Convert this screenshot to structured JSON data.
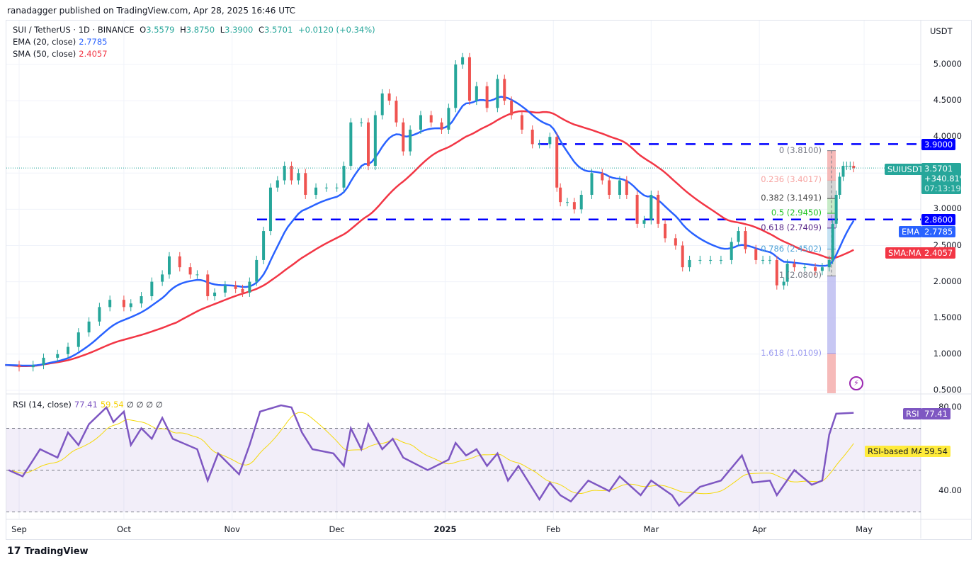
{
  "published": "ranadagger published on TradingView.com, Apr 28, 2025 16:46 UTC",
  "brand": "TradingView",
  "legend": {
    "symbol": "SUI / TetherUS · 1D · BINANCE",
    "o_label": "O",
    "o": "3.5579",
    "h_label": "H",
    "h": "3.8750",
    "l_label": "L",
    "l": "3.3900",
    "c_label": "C",
    "c": "3.5701",
    "change": "+0.0120 (+0.34%)",
    "ema_label": "EMA (20, close)",
    "ema_value": "2.7785",
    "sma_label": "SMA (50, close)",
    "sma_value": "2.4057",
    "rsi_label": "RSI (14, close)",
    "rsi_value": "77.41",
    "rsi_ma_value": "59.54",
    "rsi_extra": "∅ ∅ ∅ ∅"
  },
  "price_axis": {
    "unit": "USDT",
    "ticks": [
      "5.0000",
      "4.5000",
      "4.0000",
      "3.0000",
      "2.5000",
      "2.0000",
      "1.5000",
      "1.0000",
      "0.5000"
    ]
  },
  "rsi_axis": {
    "ticks": [
      "80.00",
      "40.00"
    ]
  },
  "time_axis": [
    [
      "Sep",
      "2024-09-01"
    ],
    [
      "Oct",
      "2024-10-01"
    ],
    [
      "Nov",
      "2024-11-01"
    ],
    [
      "Dec",
      "2024-12-01"
    ],
    [
      "2025",
      "2025-01-01"
    ],
    [
      "Feb",
      "2025-02-01"
    ],
    [
      "Mar",
      "2025-03-01"
    ],
    [
      "Apr",
      "2025-04-01"
    ],
    [
      "May",
      "2025-05-01"
    ]
  ],
  "tags": {
    "resistance": "3.9000",
    "symbol": "SUIUSDT",
    "last": "3.5701",
    "pct": "+340.81%",
    "countdown": "07:13:19",
    "support": "2.8600",
    "ema_name": "EMA",
    "ema": "2.7785",
    "sma_name": "SMA:MA",
    "sma": "2.4057",
    "rsi_name": "RSI",
    "rsi": "77.41",
    "rsi_ma_name": "RSI-based MA",
    "rsi_ma": "59.54"
  },
  "colors": {
    "up": "#26a69a",
    "down": "#ef5350",
    "ema": "#2962ff",
    "sma": "#f23645",
    "rsi": "#7e57c2",
    "rsi_ma": "#f7e43a",
    "hline": "#0000ff"
  },
  "chart_data": {
    "type": "candlestick",
    "symbol": "SUIUSDT",
    "ylim": [
      0.5,
      5.3
    ],
    "horizontal_lines": [
      3.9,
      2.86
    ],
    "closes": [
      [
        "2024-08-28",
        0.85
      ],
      [
        "2024-09-01",
        0.82
      ],
      [
        "2024-09-05",
        0.85
      ],
      [
        "2024-09-08",
        0.95
      ],
      [
        "2024-09-12",
        1.0
      ],
      [
        "2024-09-15",
        1.1
      ],
      [
        "2024-09-18",
        1.3
      ],
      [
        "2024-09-21",
        1.45
      ],
      [
        "2024-09-24",
        1.65
      ],
      [
        "2024-09-27",
        1.75
      ],
      [
        "2024-10-01",
        1.65
      ],
      [
        "2024-10-03",
        1.7
      ],
      [
        "2024-10-06",
        1.8
      ],
      [
        "2024-10-09",
        2.0
      ],
      [
        "2024-10-12",
        2.1
      ],
      [
        "2024-10-14",
        2.35
      ],
      [
        "2024-10-17",
        2.2
      ],
      [
        "2024-10-20",
        2.1
      ],
      [
        "2024-10-22",
        2.1
      ],
      [
        "2024-10-25",
        1.8
      ],
      [
        "2024-10-27",
        1.85
      ],
      [
        "2024-10-30",
        1.95
      ],
      [
        "2024-11-02",
        1.9
      ],
      [
        "2024-11-04",
        1.85
      ],
      [
        "2024-11-06",
        2.0
      ],
      [
        "2024-11-08",
        2.3
      ],
      [
        "2024-11-10",
        2.7
      ],
      [
        "2024-11-12",
        3.3
      ],
      [
        "2024-11-14",
        3.4
      ],
      [
        "2024-11-16",
        3.6
      ],
      [
        "2024-11-18",
        3.4
      ],
      [
        "2024-11-20",
        3.5
      ],
      [
        "2024-11-22",
        3.2
      ],
      [
        "2024-11-25",
        3.3
      ],
      [
        "2024-11-28",
        3.3
      ],
      [
        "2024-12-01",
        3.3
      ],
      [
        "2024-12-03",
        3.6
      ],
      [
        "2024-12-05",
        4.2
      ],
      [
        "2024-12-08",
        4.2
      ],
      [
        "2024-12-10",
        3.6
      ],
      [
        "2024-12-12",
        4.3
      ],
      [
        "2024-12-14",
        4.6
      ],
      [
        "2024-12-16",
        4.5
      ],
      [
        "2024-12-18",
        4.2
      ],
      [
        "2024-12-20",
        3.8
      ],
      [
        "2024-12-22",
        4.1
      ],
      [
        "2024-12-25",
        4.3
      ],
      [
        "2024-12-28",
        4.2
      ],
      [
        "2024-12-31",
        4.1
      ],
      [
        "2025-01-02",
        4.4
      ],
      [
        "2025-01-04",
        5.0
      ],
      [
        "2025-01-06",
        5.1
      ],
      [
        "2025-01-08",
        4.5
      ],
      [
        "2025-01-10",
        4.7
      ],
      [
        "2025-01-13",
        4.4
      ],
      [
        "2025-01-16",
        4.8
      ],
      [
        "2025-01-18",
        4.5
      ],
      [
        "2025-01-20",
        4.3
      ],
      [
        "2025-01-23",
        4.1
      ],
      [
        "2025-01-26",
        3.9
      ],
      [
        "2025-01-28",
        3.9
      ],
      [
        "2025-01-31",
        4.0
      ],
      [
        "2025-02-02",
        3.3
      ],
      [
        "2025-02-03",
        3.1
      ],
      [
        "2025-02-05",
        3.1
      ],
      [
        "2025-02-07",
        3.0
      ],
      [
        "2025-02-09",
        3.2
      ],
      [
        "2025-02-12",
        3.5
      ],
      [
        "2025-02-15",
        3.4
      ],
      [
        "2025-02-17",
        3.2
      ],
      [
        "2025-02-20",
        3.4
      ],
      [
        "2025-02-22",
        3.2
      ],
      [
        "2025-02-25",
        2.8
      ],
      [
        "2025-02-27",
        2.85
      ],
      [
        "2025-03-01",
        3.2
      ],
      [
        "2025-03-03",
        2.8
      ],
      [
        "2025-03-05",
        2.6
      ],
      [
        "2025-03-08",
        2.5
      ],
      [
        "2025-03-10",
        2.2
      ],
      [
        "2025-03-12",
        2.3
      ],
      [
        "2025-03-15",
        2.3
      ],
      [
        "2025-03-18",
        2.3
      ],
      [
        "2025-03-21",
        2.3
      ],
      [
        "2025-03-24",
        2.55
      ],
      [
        "2025-03-26",
        2.7
      ],
      [
        "2025-03-28",
        2.45
      ],
      [
        "2025-03-31",
        2.3
      ],
      [
        "2025-04-02",
        2.3
      ],
      [
        "2025-04-04",
        2.3
      ],
      [
        "2025-04-06",
        1.95
      ],
      [
        "2025-04-08",
        2.0
      ],
      [
        "2025-04-09",
        2.25
      ],
      [
        "2025-04-11",
        2.2
      ],
      [
        "2025-04-14",
        2.2
      ],
      [
        "2025-04-17",
        2.15
      ],
      [
        "2025-04-19",
        2.2
      ],
      [
        "2025-04-21",
        2.3
      ],
      [
        "2025-04-22",
        2.8
      ],
      [
        "2025-04-23",
        3.2
      ],
      [
        "2025-04-24",
        3.45
      ],
      [
        "2025-04-25",
        3.6
      ],
      [
        "2025-04-26",
        3.6
      ],
      [
        "2025-04-27",
        3.6
      ],
      [
        "2025-04-28",
        3.5701
      ]
    ],
    "indicators": {
      "ema": {
        "period": 20,
        "last": 2.7785
      },
      "sma": {
        "period": 50,
        "last": 2.4057
      }
    },
    "fibonacci": [
      {
        "label": "0 (3.8100)",
        "ratio": 0,
        "price": 3.81,
        "color": "#787b86"
      },
      {
        "label": "0.236 (3.4017)",
        "ratio": 0.236,
        "price": 3.4017,
        "color": "#f7a5a3"
      },
      {
        "label": "0.382 (3.1491)",
        "ratio": 0.382,
        "price": 3.1491,
        "color": "#4a4a4a"
      },
      {
        "label": "0.5 (2.9450)",
        "ratio": 0.5,
        "price": 2.945,
        "color": "#22c322"
      },
      {
        "label": "0.618 (2.7409)",
        "ratio": 0.618,
        "price": 2.7409,
        "color": "#5b2c8a"
      },
      {
        "label": "0.786 (2.4502)",
        "ratio": 0.786,
        "price": 2.4502,
        "color": "#4fa3d8"
      },
      {
        "label": "1 (2.0800)",
        "ratio": 1,
        "price": 2.08,
        "color": "#787b86"
      },
      {
        "label": "1.618 (1.0109)",
        "ratio": 1.618,
        "price": 1.0109,
        "color": "#9c9cf0"
      }
    ],
    "rsi": {
      "period": 14,
      "ma_last": 59.54,
      "bands": [
        70,
        50,
        30
      ],
      "ylim": [
        25,
        85
      ],
      "values": [
        [
          "2024-08-29",
          50
        ],
        [
          "2024-09-02",
          47
        ],
        [
          "2024-09-07",
          60
        ],
        [
          "2024-09-12",
          56
        ],
        [
          "2024-09-15",
          68
        ],
        [
          "2024-09-18",
          62
        ],
        [
          "2024-09-21",
          72
        ],
        [
          "2024-09-26",
          80
        ],
        [
          "2024-09-28",
          73
        ],
        [
          "2024-10-01",
          78
        ],
        [
          "2024-10-03",
          62
        ],
        [
          "2024-10-06",
          70
        ],
        [
          "2024-10-09",
          65
        ],
        [
          "2024-10-12",
          75
        ],
        [
          "2024-10-15",
          65
        ],
        [
          "2024-10-22",
          60
        ],
        [
          "2024-10-25",
          45
        ],
        [
          "2024-10-28",
          58
        ],
        [
          "2024-11-03",
          48
        ],
        [
          "2024-11-06",
          62
        ],
        [
          "2024-11-09",
          78
        ],
        [
          "2024-11-15",
          81
        ],
        [
          "2024-11-18",
          80
        ],
        [
          "2024-11-21",
          68
        ],
        [
          "2024-11-24",
          60
        ],
        [
          "2024-11-30",
          58
        ],
        [
          "2024-12-03",
          52
        ],
        [
          "2024-12-05",
          70
        ],
        [
          "2024-12-08",
          60
        ],
        [
          "2024-12-10",
          72
        ],
        [
          "2024-12-14",
          60
        ],
        [
          "2024-12-17",
          65
        ],
        [
          "2024-12-20",
          56
        ],
        [
          "2024-12-27",
          50
        ],
        [
          "2025-01-02",
          55
        ],
        [
          "2025-01-04",
          63
        ],
        [
          "2025-01-07",
          57
        ],
        [
          "2025-01-10",
          60
        ],
        [
          "2025-01-13",
          52
        ],
        [
          "2025-01-16",
          58
        ],
        [
          "2025-01-19",
          45
        ],
        [
          "2025-01-22",
          52
        ],
        [
          "2025-01-28",
          36
        ],
        [
          "2025-01-31",
          44
        ],
        [
          "2025-02-03",
          38
        ],
        [
          "2025-02-06",
          35
        ],
        [
          "2025-02-11",
          45
        ],
        [
          "2025-02-17",
          40
        ],
        [
          "2025-02-20",
          47
        ],
        [
          "2025-02-26",
          38
        ],
        [
          "2025-03-01",
          45
        ],
        [
          "2025-03-07",
          38
        ],
        [
          "2025-03-09",
          33
        ],
        [
          "2025-03-15",
          42
        ],
        [
          "2025-03-21",
          45
        ],
        [
          "2025-03-27",
          57
        ],
        [
          "2025-03-30",
          44
        ],
        [
          "2025-04-04",
          45
        ],
        [
          "2025-04-06",
          38
        ],
        [
          "2025-04-11",
          50
        ],
        [
          "2025-04-16",
          43
        ],
        [
          "2025-04-19",
          45
        ],
        [
          "2025-04-21",
          67
        ],
        [
          "2025-04-23",
          77
        ],
        [
          "2025-04-28",
          77.41
        ]
      ]
    }
  }
}
